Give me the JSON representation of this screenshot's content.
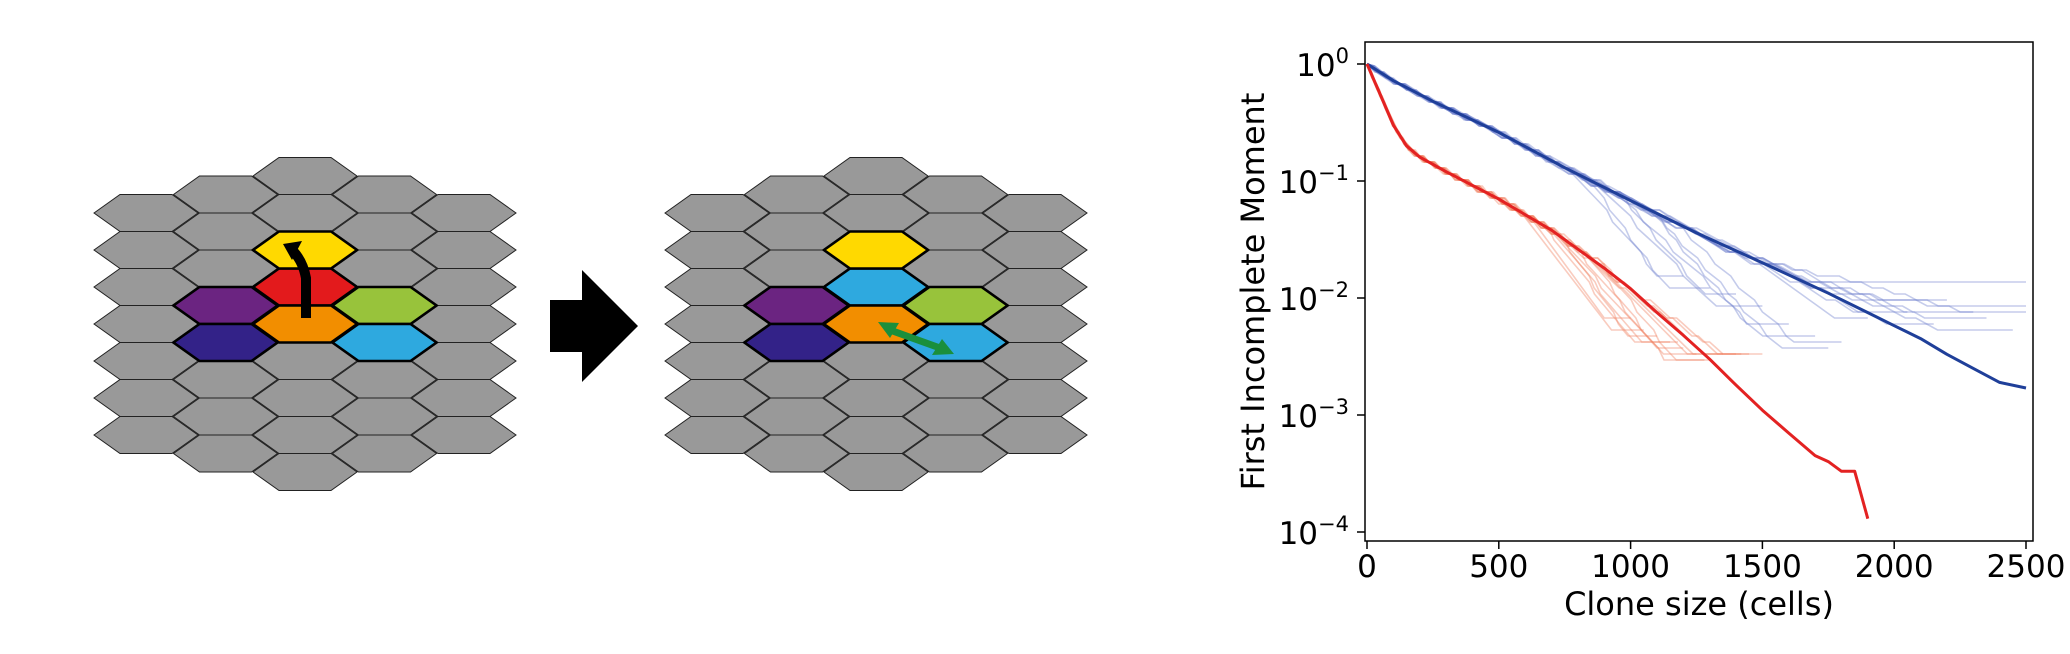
{
  "panels": {
    "left": {
      "highlight": [
        {
          "r": 3,
          "c": 1,
          "color": "#6b2481"
        },
        {
          "r": 3,
          "c": 2,
          "color": "#e31a1c"
        },
        {
          "r": 2,
          "c": 2,
          "color": "#ffd900"
        },
        {
          "r": 3,
          "c": 3,
          "color": "#98c33b"
        },
        {
          "r": 4,
          "c": 1,
          "color": "#332288"
        },
        {
          "r": 4,
          "c": 2,
          "color": "#f28e00"
        },
        {
          "r": 4,
          "c": 3,
          "color": "#2ea9df"
        }
      ]
    },
    "right": {
      "highlight": [
        {
          "r": 3,
          "c": 1,
          "color": "#6b2481"
        },
        {
          "r": 3,
          "c": 2,
          "color": "#2ea9df"
        },
        {
          "r": 2,
          "c": 2,
          "color": "#ffd900"
        },
        {
          "r": 3,
          "c": 3,
          "color": "#98c33b"
        },
        {
          "r": 4,
          "c": 1,
          "color": "#332288"
        },
        {
          "r": 4,
          "c": 2,
          "color": "#f28e00"
        },
        {
          "r": 4,
          "c": 3,
          "color": "#2ea9df"
        }
      ]
    },
    "colors": {
      "background_hex": "#999999",
      "up_arrow": "#000000",
      "swap_arrow": "#1a8f3c",
      "transition_arrow": "#000000"
    }
  },
  "chart_data": {
    "type": "line",
    "title": "",
    "xlabel": "Clone size (cells)",
    "ylabel": "First Incomplete Moment",
    "xlim": [
      0,
      2550
    ],
    "ylim": [
      0.0001,
      1.0
    ],
    "yscale": "log",
    "x_ticks": [
      0,
      500,
      1000,
      1500,
      2000,
      2500
    ],
    "y_ticks": [
      {
        "value": 1,
        "base": "10",
        "exp": "0"
      },
      {
        "value": 0.1,
        "base": "10",
        "exp": "−1"
      },
      {
        "value": 0.01,
        "base": "10",
        "exp": "−2"
      },
      {
        "value": 0.001,
        "base": "10",
        "exp": "−3"
      },
      {
        "value": 0.0001,
        "base": "10",
        "exp": "−4"
      }
    ],
    "grid": false,
    "legend": "none",
    "series": [
      {
        "color": "#1f3f99",
        "x": [
          0,
          100,
          250,
          500,
          750,
          1000,
          1250,
          1500,
          1750,
          1900,
          2000,
          2100,
          2200,
          2300,
          2400,
          2500
        ],
        "y": [
          1.0,
          0.72,
          0.48,
          0.26,
          0.13,
          0.068,
          0.036,
          0.02,
          0.011,
          0.0075,
          0.0058,
          0.0045,
          0.0033,
          0.0025,
          0.0019,
          0.0017
        ]
      },
      {
        "color": "#e32222",
        "x": [
          0,
          50,
          100,
          150,
          200,
          300,
          500,
          700,
          900,
          1000,
          1100,
          1200,
          1300,
          1400,
          1500,
          1600,
          1700,
          1750,
          1800,
          1850,
          1900
        ],
        "y": [
          1.0,
          0.55,
          0.3,
          0.2,
          0.16,
          0.12,
          0.07,
          0.038,
          0.018,
          0.012,
          0.0075,
          0.0048,
          0.003,
          0.0018,
          0.0011,
          0.0007,
          0.00045,
          0.0004,
          0.00033,
          0.00033,
          0.00013
        ]
      }
    ],
    "bundles": [
      {
        "color": "#6f80cc",
        "opacity": 0.4,
        "center": [
          [
            0,
            1.0
          ],
          [
            100,
            0.72
          ],
          [
            250,
            0.48
          ],
          [
            500,
            0.26
          ],
          [
            750,
            0.13
          ],
          [
            1000,
            0.068
          ],
          [
            1250,
            0.036
          ],
          [
            1500,
            0.02
          ],
          [
            1750,
            0.011
          ],
          [
            2000,
            0.0085
          ]
        ],
        "ends": [
          {
            "end_x": 2500,
            "level": 0.014
          },
          {
            "end_x": 2500,
            "level": 0.0085
          },
          {
            "end_x": 2500,
            "level": 0.0078
          },
          {
            "end_x": 2450,
            "level": 0.0055
          },
          {
            "end_x": 2300,
            "level": 0.0075
          },
          {
            "end_x": 2200,
            "level": 0.0095
          },
          {
            "end_x": 2150,
            "level": 0.006
          },
          {
            "end_x": 2050,
            "level": 0.008
          },
          {
            "end_x": 1900,
            "level": 0.0068
          },
          {
            "end_x": 1800,
            "level": 0.0042
          },
          {
            "end_x": 1700,
            "level": 0.0049
          },
          {
            "end_x": 1600,
            "level": 0.0058
          },
          {
            "end_x": 1500,
            "level": 0.0085
          },
          {
            "end_x": 1400,
            "level": 0.011
          },
          {
            "end_x": 1300,
            "level": 0.012
          },
          {
            "end_x": 1200,
            "level": 0.015
          },
          {
            "end_x": 1750,
            "level": 0.0038
          },
          {
            "end_x": 2350,
            "level": 0.0065
          }
        ]
      },
      {
        "color": "#f08060",
        "opacity": 0.4,
        "center": [
          [
            0,
            1.0
          ],
          [
            50,
            0.55
          ],
          [
            100,
            0.3
          ],
          [
            150,
            0.2
          ],
          [
            200,
            0.16
          ],
          [
            300,
            0.12
          ],
          [
            500,
            0.07
          ],
          [
            700,
            0.038
          ],
          [
            900,
            0.018
          ],
          [
            1100,
            0.0075
          ]
        ],
        "ends": [
          {
            "end_x": 1500,
            "level": 0.0035
          },
          {
            "end_x": 1450,
            "level": 0.0035
          },
          {
            "end_x": 1400,
            "level": 0.0035
          },
          {
            "end_x": 1350,
            "level": 0.0032
          },
          {
            "end_x": 1300,
            "level": 0.003
          },
          {
            "end_x": 1250,
            "level": 0.0033
          },
          {
            "end_x": 1200,
            "level": 0.0036
          },
          {
            "end_x": 1150,
            "level": 0.004
          },
          {
            "end_x": 1100,
            "level": 0.0045
          },
          {
            "end_x": 1050,
            "level": 0.0055
          },
          {
            "end_x": 1000,
            "level": 0.007
          },
          {
            "end_x": 1280,
            "level": 0.0028
          },
          {
            "end_x": 1180,
            "level": 0.0042
          },
          {
            "end_x": 1420,
            "level": 0.0034
          }
        ]
      }
    ]
  }
}
